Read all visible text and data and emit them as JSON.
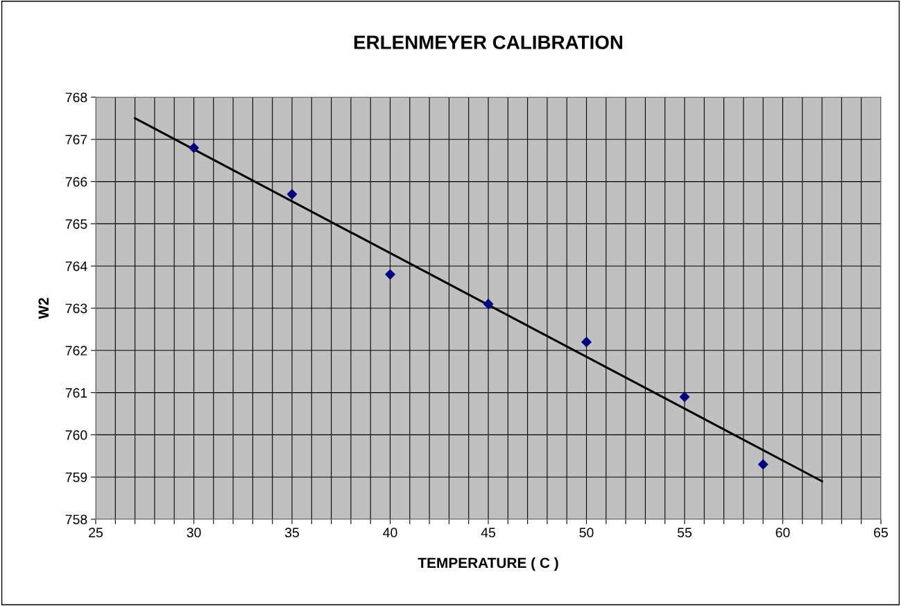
{
  "chart_data": {
    "type": "scatter",
    "title": "ERLENMEYER CALIBRATION",
    "xlabel": "TEMPERATURE ( C )",
    "ylabel": "W2",
    "series": [
      {
        "color": "#000080",
        "marker": "diamond",
        "x": [
          30,
          35,
          40,
          45,
          50,
          55,
          59
        ],
        "values": [
          766.8,
          765.7,
          763.8,
          763.1,
          762.2,
          760.9,
          759.3
        ]
      },
      {
        "type": "line",
        "color": "#000000",
        "line_style": "solid",
        "marker": "none",
        "x": [
          27,
          62
        ],
        "values": [
          767.5,
          758.9
        ]
      }
    ],
    "xlim": [
      25,
      65
    ],
    "xticks": [
      25,
      {
        "value": 26,
        "label": null
      },
      {
        "value": 27,
        "label": null
      },
      {
        "value": 28,
        "label": null
      },
      {
        "value": 29,
        "label": null
      },
      30,
      {
        "value": 31,
        "label": null
      },
      {
        "value": 32,
        "label": null
      },
      {
        "value": 33,
        "label": null
      },
      {
        "value": 34,
        "label": null
      },
      35,
      {
        "value": 36,
        "label": null
      },
      {
        "value": 37,
        "label": null
      },
      {
        "value": 38,
        "label": null
      },
      {
        "value": 39,
        "label": null
      },
      40,
      {
        "value": 41,
        "label": null
      },
      {
        "value": 42,
        "label": null
      },
      {
        "value": 43,
        "label": null
      },
      {
        "value": 44,
        "label": null
      },
      45,
      {
        "value": 46,
        "label": null
      },
      {
        "value": 47,
        "label": null
      },
      {
        "value": 48,
        "label": null
      },
      {
        "value": 49,
        "label": null
      },
      50,
      {
        "value": 51,
        "label": null
      },
      {
        "value": 52,
        "label": null
      },
      {
        "value": 53,
        "label": null
      },
      {
        "value": 54,
        "label": null
      },
      55,
      {
        "value": 56,
        "label": null
      },
      {
        "value": 57,
        "label": null
      },
      {
        "value": 58,
        "label": null
      },
      {
        "value": 59,
        "label": null
      },
      60,
      {
        "value": 61,
        "label": null
      },
      {
        "value": 62,
        "label": null
      },
      {
        "value": 63,
        "label": null
      },
      {
        "value": 64,
        "label": null
      },
      65
    ],
    "ylim": [
      758,
      768
    ],
    "yticks": [
      758,
      759,
      760,
      761,
      762,
      763,
      764,
      765,
      766,
      767,
      768
    ],
    "grid": true,
    "legend": false
  }
}
